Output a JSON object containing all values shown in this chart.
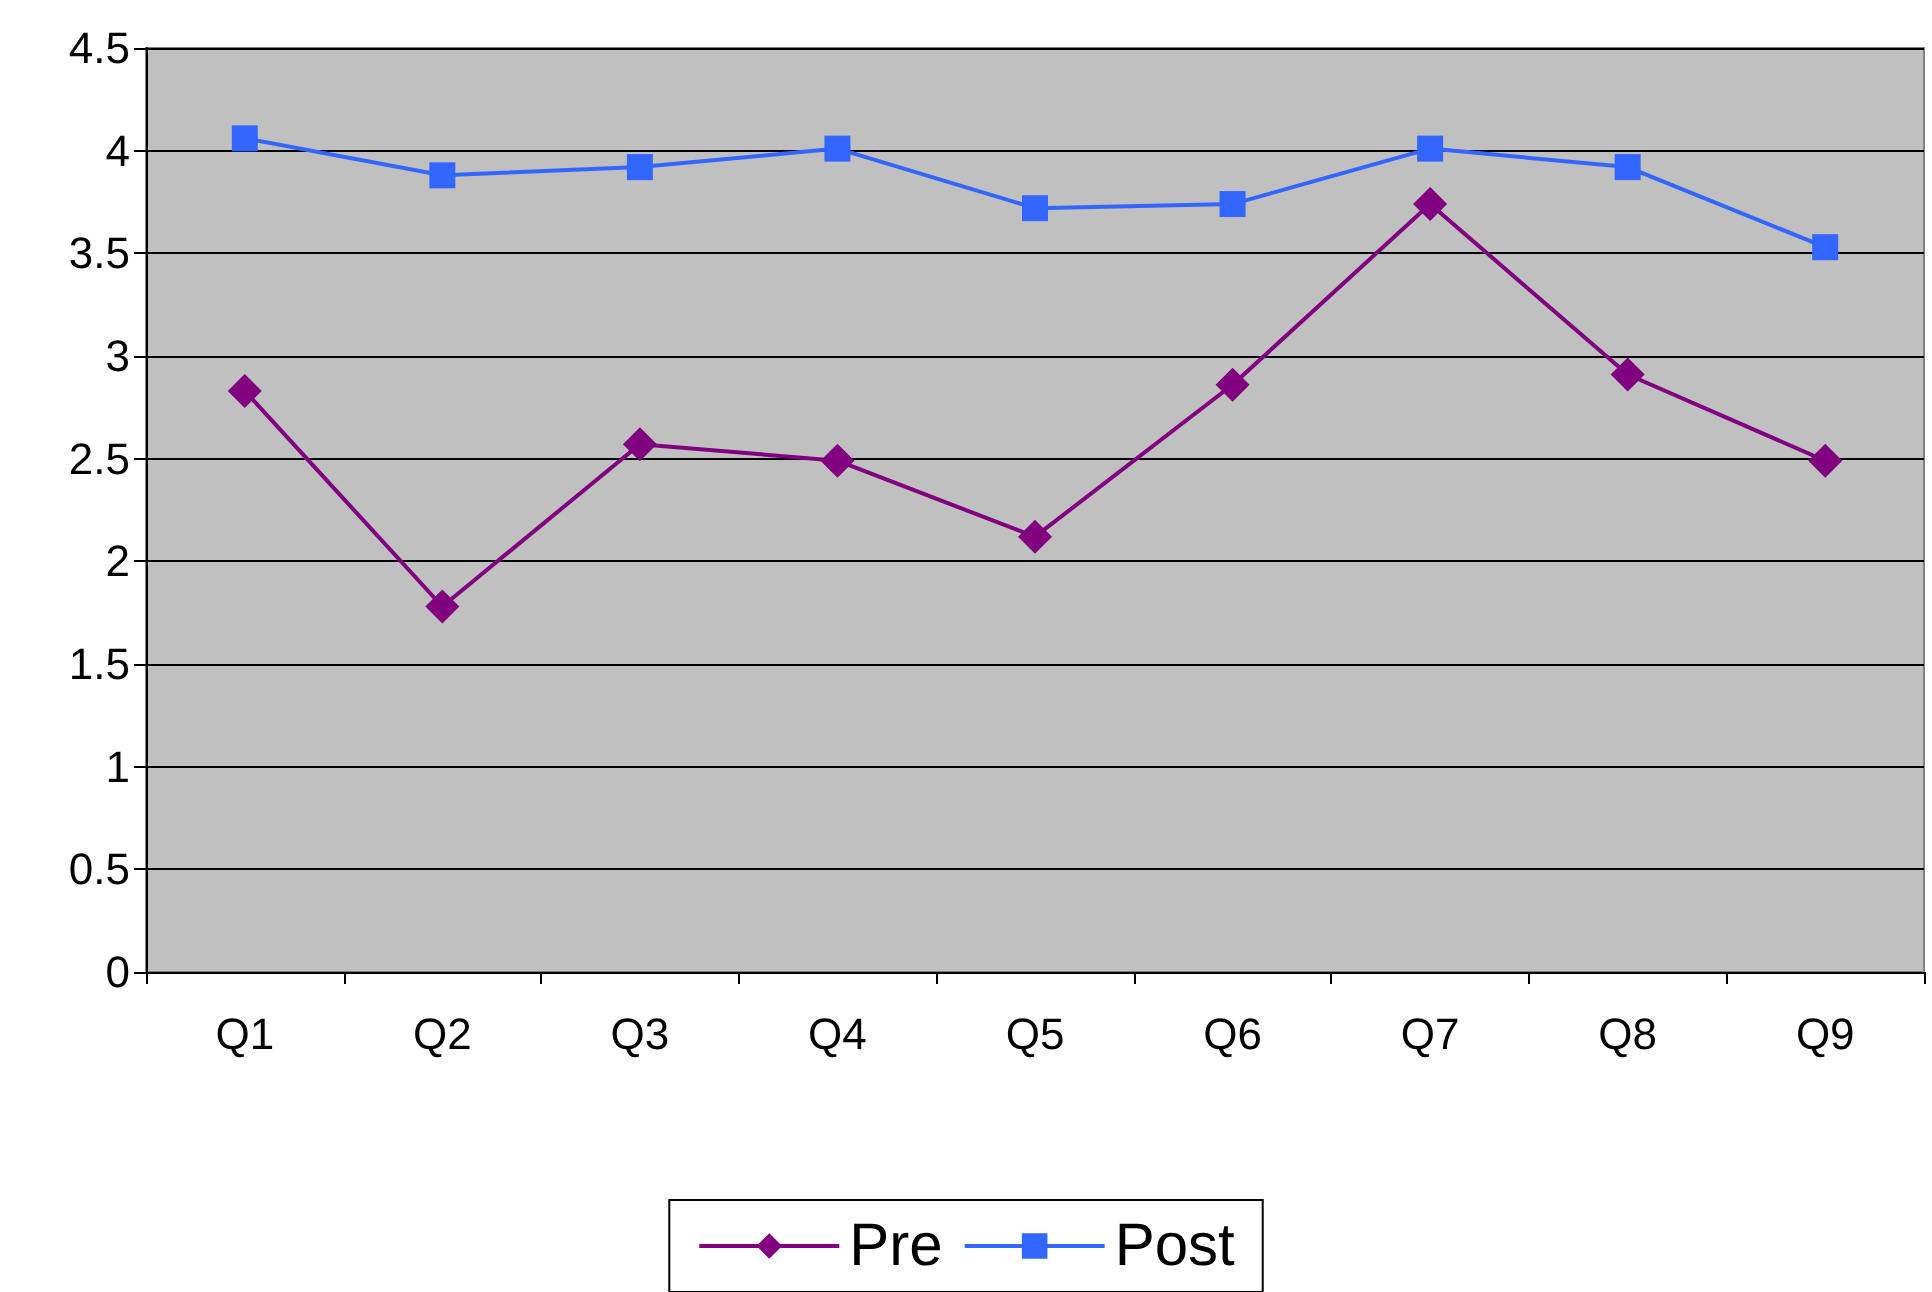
{
  "chart_data": {
    "type": "line",
    "categories": [
      "Q1",
      "Q2",
      "Q3",
      "Q4",
      "Q5",
      "Q6",
      "Q7",
      "Q8",
      "Q9"
    ],
    "series": [
      {
        "name": "Pre",
        "color": "#800080",
        "marker": "diamond",
        "values": [
          2.83,
          1.78,
          2.57,
          2.49,
          2.12,
          2.86,
          3.74,
          2.91,
          2.49
        ]
      },
      {
        "name": "Post",
        "color": "#3366ff",
        "marker": "square",
        "values": [
          4.06,
          3.88,
          3.92,
          4.01,
          3.72,
          3.74,
          4.01,
          3.92,
          3.53
        ]
      }
    ],
    "ylim": [
      0,
      4.5
    ],
    "yticks": [
      0,
      0.5,
      1,
      1.5,
      2,
      2.5,
      3,
      3.5,
      4,
      4.5
    ],
    "grid": "y",
    "legend": "bottom"
  }
}
